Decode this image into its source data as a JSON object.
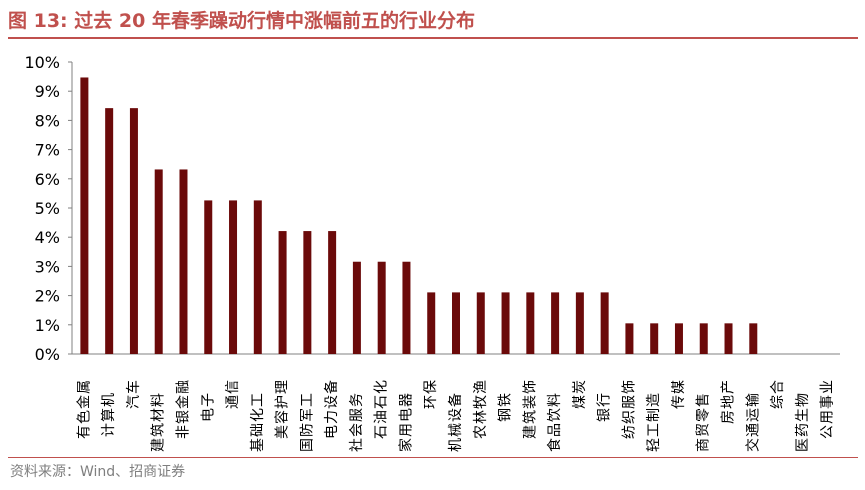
{
  "header": {
    "figure_label": "图 13:",
    "title": "过去 20 年春季躁动行情中涨幅前五的行业分布"
  },
  "footer": {
    "source": "资料来源：Wind、招商证券"
  },
  "colors": {
    "bar": "#6B0A0A",
    "accent": "#C0504D",
    "axis": "#808080",
    "text": "#000000"
  },
  "chart_data": {
    "type": "bar",
    "title": "过去 20 年春季躁动行情中涨幅前五的行业分布",
    "xlabel": "",
    "ylabel": "",
    "ylim": [
      0,
      10
    ],
    "y_ticks": [
      "0%",
      "1%",
      "2%",
      "3%",
      "4%",
      "5%",
      "6%",
      "7%",
      "8%",
      "9%",
      "10%"
    ],
    "grid": false,
    "categories": [
      "有色金属",
      "计算机",
      "汽车",
      "建筑材料",
      "非银金融",
      "电子",
      "通信",
      "基础化工",
      "美容护理",
      "国防军工",
      "电力设备",
      "社会服务",
      "石油石化",
      "家用电器",
      "环保",
      "机械设备",
      "农林牧渔",
      "钢铁",
      "建筑装饰",
      "食品饮料",
      "煤炭",
      "银行",
      "纺织服饰",
      "轻工制造",
      "传媒",
      "商贸零售",
      "房地产",
      "交通运输",
      "综合",
      "医药生物",
      "公用事业"
    ],
    "values": [
      9.47,
      8.42,
      8.42,
      6.32,
      6.32,
      5.26,
      5.26,
      5.26,
      4.21,
      4.21,
      4.21,
      3.16,
      3.16,
      3.16,
      2.11,
      2.11,
      2.11,
      2.11,
      2.11,
      2.11,
      2.11,
      2.11,
      1.05,
      1.05,
      1.05,
      1.05,
      1.05,
      1.05,
      0,
      0,
      0
    ]
  }
}
